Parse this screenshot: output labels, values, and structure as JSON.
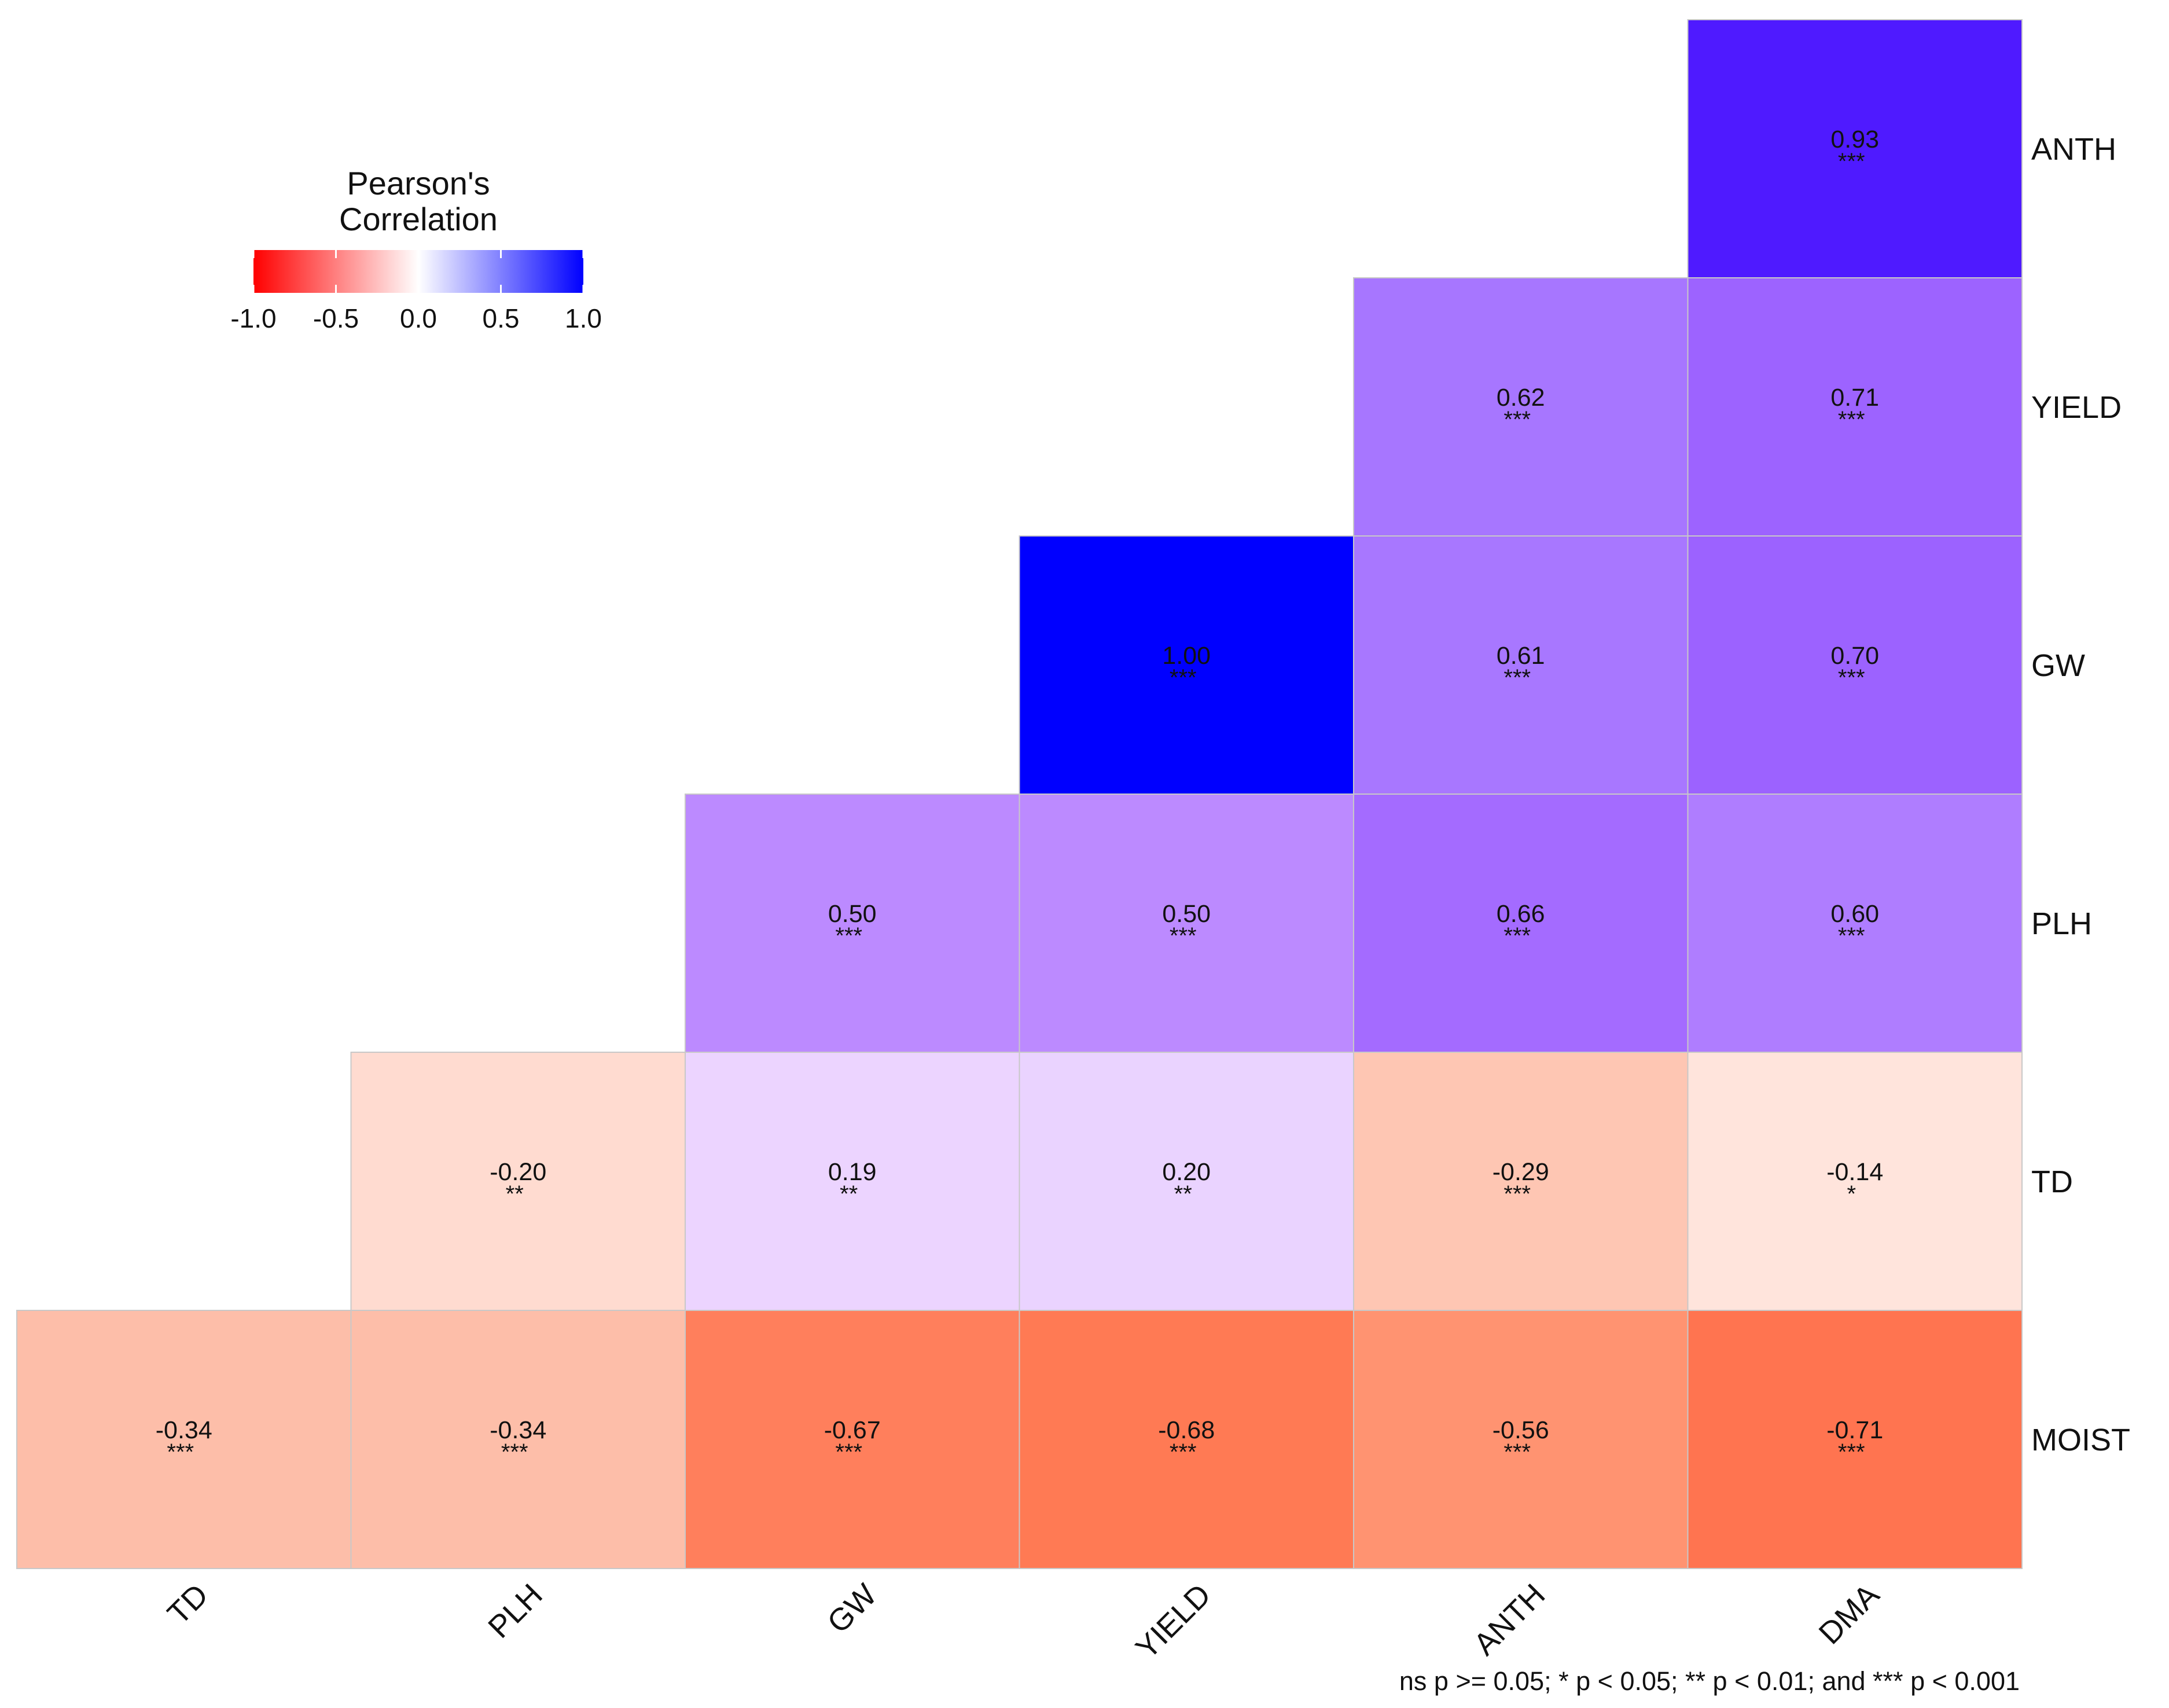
{
  "chart_data": {
    "type": "heatmap",
    "subtype": "lower-triangle correlation matrix",
    "x_labels": [
      "TD",
      "PLH",
      "GW",
      "YIELD",
      "ANTH",
      "DMA"
    ],
    "y_labels": [
      "ANTH",
      "YIELD",
      "GW",
      "PLH",
      "TD",
      "MOIST"
    ],
    "cells": [
      {
        "x": "DMA",
        "y": "ANTH",
        "value": 0.93,
        "label": "0.93",
        "sig": "***",
        "color": "#4f1aff"
      },
      {
        "x": "ANTH",
        "y": "YIELD",
        "value": 0.62,
        "label": "0.62",
        "sig": "***",
        "color": "#a776ff"
      },
      {
        "x": "DMA",
        "y": "YIELD",
        "value": 0.71,
        "label": "0.71",
        "sig": "***",
        "color": "#9d63ff"
      },
      {
        "x": "YIELD",
        "y": "GW",
        "value": 1.0,
        "label": "1.00",
        "sig": "***",
        "color": "#0000ff"
      },
      {
        "x": "ANTH",
        "y": "GW",
        "value": 0.61,
        "label": "0.61",
        "sig": "***",
        "color": "#a877ff"
      },
      {
        "x": "DMA",
        "y": "GW",
        "value": 0.7,
        "label": "0.70",
        "sig": "***",
        "color": "#9c62ff"
      },
      {
        "x": "GW",
        "y": "PLH",
        "value": 0.5,
        "label": "0.50",
        "sig": "***",
        "color": "#bc8aff"
      },
      {
        "x": "YIELD",
        "y": "PLH",
        "value": 0.5,
        "label": "0.50",
        "sig": "***",
        "color": "#bc8aff"
      },
      {
        "x": "ANTH",
        "y": "PLH",
        "value": 0.66,
        "label": "0.66",
        "sig": "***",
        "color": "#a46bff"
      },
      {
        "x": "DMA",
        "y": "PLH",
        "value": 0.6,
        "label": "0.60",
        "sig": "***",
        "color": "#af7dff"
      },
      {
        "x": "PLH",
        "y": "TD",
        "value": -0.2,
        "label": "-0.20",
        "sig": "**",
        "color": "#ffdbd0"
      },
      {
        "x": "GW",
        "y": "TD",
        "value": 0.19,
        "label": "0.19",
        "sig": "**",
        "color": "#ecd4ff"
      },
      {
        "x": "YIELD",
        "y": "TD",
        "value": 0.2,
        "label": "0.20",
        "sig": "**",
        "color": "#ead3ff"
      },
      {
        "x": "ANTH",
        "y": "TD",
        "value": -0.29,
        "label": "-0.29",
        "sig": "***",
        "color": "#fec6b3"
      },
      {
        "x": "DMA",
        "y": "TD",
        "value": -0.14,
        "label": "-0.14",
        "sig": "*",
        "color": "#ffe4dc"
      },
      {
        "x": "TD",
        "y": "MOIST",
        "value": -0.34,
        "label": "-0.34",
        "sig": "***",
        "color": "#fdbea9"
      },
      {
        "x": "PLH",
        "y": "MOIST",
        "value": -0.34,
        "label": "-0.34",
        "sig": "***",
        "color": "#fdbea9"
      },
      {
        "x": "GW",
        "y": "MOIST",
        "value": -0.67,
        "label": "-0.67",
        "sig": "***",
        "color": "#ff7f5c"
      },
      {
        "x": "YIELD",
        "y": "MOIST",
        "value": -0.68,
        "label": "-0.68",
        "sig": "***",
        "color": "#ff7a54"
      },
      {
        "x": "ANTH",
        "y": "MOIST",
        "value": -0.56,
        "label": "-0.56",
        "sig": "***",
        "color": "#ff9371"
      },
      {
        "x": "DMA",
        "y": "MOIST",
        "value": -0.71,
        "label": "-0.71",
        "sig": "***",
        "color": "#ff7450"
      }
    ],
    "legend": {
      "title_line1": "Pearson's",
      "title_line2": "Correlation",
      "range": [
        -1.0,
        1.0
      ],
      "ticks": [
        -1.0,
        -0.5,
        0.0,
        0.5,
        1.0
      ],
      "tick_labels": [
        "-1.0",
        "-0.5",
        "0.0",
        "0.5",
        "1.0"
      ],
      "low_color": "#ff0000",
      "mid_color": "#ffffff",
      "high_color": "#0000ff",
      "placement": "top-left"
    },
    "caption": "ns p >= 0.05; * p < 0.05; ** p < 0.01; and *** p < 0.001"
  }
}
